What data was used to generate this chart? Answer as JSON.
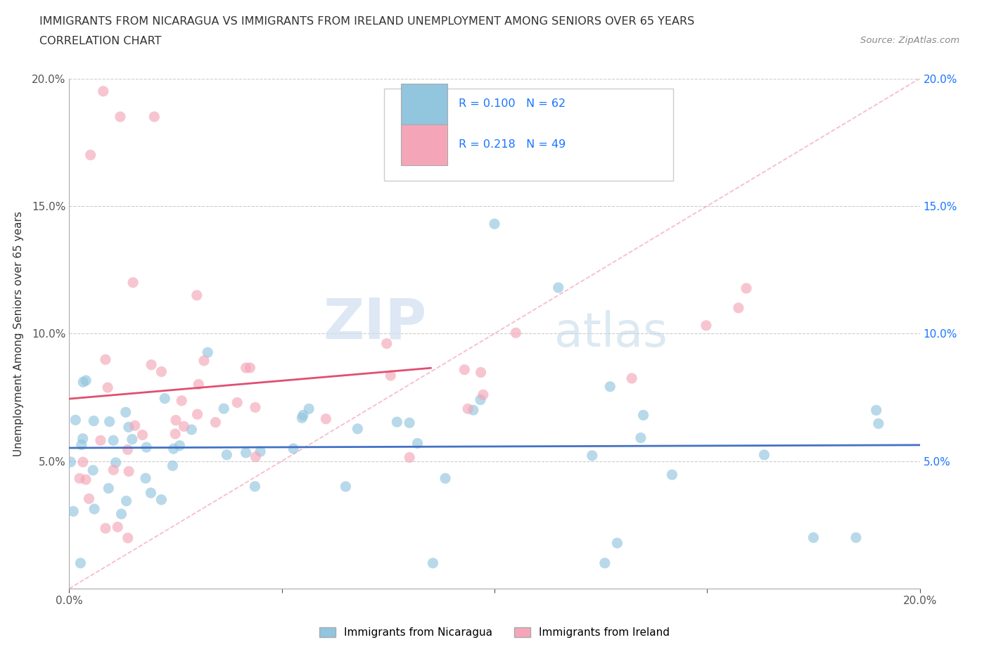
{
  "title_line1": "IMMIGRANTS FROM NICARAGUA VS IMMIGRANTS FROM IRELAND UNEMPLOYMENT AMONG SENIORS OVER 65 YEARS",
  "title_line2": "CORRELATION CHART",
  "source_text": "Source: ZipAtlas.com",
  "ylabel": "Unemployment Among Seniors over 65 years",
  "legend_label_1": "Immigrants from Nicaragua",
  "legend_label_2": "Immigrants from Ireland",
  "R1": 0.1,
  "N1": 62,
  "R2": 0.218,
  "N2": 49,
  "color1": "#92c5de",
  "color2": "#f4a6b8",
  "trendline1_color": "#4472c4",
  "trendline2_color": "#e05070",
  "diagonal_color": "#f4a6b8",
  "xlim": [
    0.0,
    0.2
  ],
  "ylim": [
    0.0,
    0.2
  ],
  "xticks": [
    0.0,
    0.05,
    0.1,
    0.15,
    0.2
  ],
  "yticks": [
    0.0,
    0.05,
    0.1,
    0.15,
    0.2
  ],
  "xticklabels_ends": [
    "0.0%",
    "20.0%"
  ],
  "yticklabels": [
    "",
    "5.0%",
    "10.0%",
    "15.0%",
    "20.0%"
  ],
  "right_yticklabels": [
    "",
    "5.0%",
    "10.0%",
    "15.0%",
    "20.0%"
  ],
  "watermark_zip": "ZIP",
  "watermark_atlas": "atlas",
  "seed": 17
}
